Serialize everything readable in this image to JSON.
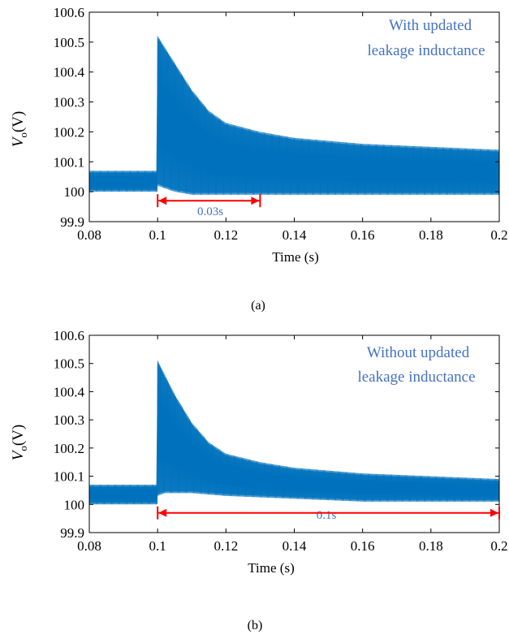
{
  "colors": {
    "signal": "#0072bd",
    "annotation_text": "#4472c4",
    "arrow": "#ff0000",
    "axis": "#000000"
  },
  "chart_data": [
    {
      "type": "line",
      "panel_label": "(a)",
      "annotation": [
        "With updated",
        "leakage inductance"
      ],
      "xlabel": "Time (s)",
      "ylabel_main": "V",
      "ylabel_sub": "o",
      "ylabel_unit": "(V)",
      "xlim": [
        0.08,
        0.2
      ],
      "ylim": [
        99.9,
        100.6
      ],
      "x_ticks": [
        "0.08",
        "0.1",
        "0.12",
        "0.14",
        "0.16",
        "0.18",
        "0.2"
      ],
      "y_ticks": [
        "100.6",
        "100.5",
        "100.4",
        "100.3",
        "100.2",
        "100.1",
        "100",
        "99.9"
      ],
      "series": [
        {
          "band_upper": {
            "x": [
              0.08,
              0.0999,
              0.1,
              0.105,
              0.11,
              0.115,
              0.12,
              0.13,
              0.14,
              0.16,
              0.18,
              0.2
            ],
            "y": [
              100.07,
              100.07,
              100.52,
              100.43,
              100.34,
              100.27,
              100.23,
              100.2,
              100.18,
              100.16,
              100.15,
              100.14
            ]
          },
          "band_lower": {
            "x": [
              0.08,
              0.0999,
              0.1,
              0.105,
              0.11,
              0.12,
              0.14,
              0.16,
              0.18,
              0.2
            ],
            "y": [
              100.0,
              100.0,
              100.02,
              100.0,
              99.99,
              99.99,
              99.99,
              99.99,
              99.99,
              99.99
            ]
          }
        }
      ],
      "duration": {
        "label": "0.03s",
        "x_start": 0.1,
        "x_end": 0.13,
        "y": 99.97
      }
    },
    {
      "type": "line",
      "panel_label": "(b)",
      "annotation": [
        "Without updated",
        "leakage inductance"
      ],
      "xlabel": "Time (s)",
      "ylabel_main": "V",
      "ylabel_sub": "o",
      "ylabel_unit": "(V)",
      "xlim": [
        0.08,
        0.2
      ],
      "ylim": [
        99.9,
        100.6
      ],
      "x_ticks": [
        "0.08",
        "0.1",
        "0.12",
        "0.14",
        "0.16",
        "0.18",
        "0.2"
      ],
      "y_ticks": [
        "100.6",
        "100.5",
        "100.4",
        "100.3",
        "100.2",
        "100.1",
        "100",
        "99.9"
      ],
      "series": [
        {
          "band_upper": {
            "x": [
              0.08,
              0.0999,
              0.1,
              0.105,
              0.11,
              0.115,
              0.12,
              0.13,
              0.14,
              0.16,
              0.18,
              0.2
            ],
            "y": [
              100.07,
              100.07,
              100.51,
              100.39,
              100.29,
              100.22,
              100.18,
              100.15,
              100.13,
              100.11,
              100.1,
              100.09
            ]
          },
          "band_lower": {
            "x": [
              0.08,
              0.0999,
              0.1,
              0.102,
              0.11,
              0.12,
              0.14,
              0.16,
              0.18,
              0.2
            ],
            "y": [
              100.0,
              100.0,
              100.03,
              100.04,
              100.04,
              100.03,
              100.02,
              100.01,
              100.01,
              100.01
            ]
          }
        }
      ],
      "duration": {
        "label": "0.1s",
        "x_start": 0.1,
        "x_end": 0.2,
        "y": 99.97
      }
    }
  ]
}
